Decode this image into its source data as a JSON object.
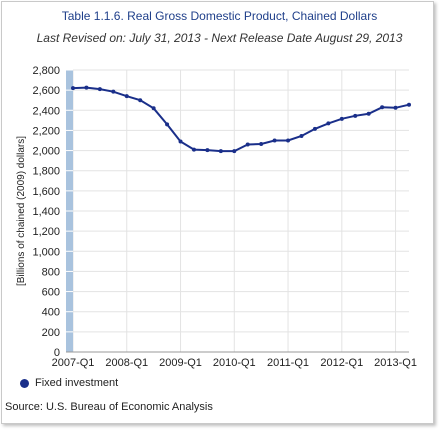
{
  "title": "Table 1.1.6. Real Gross Domestic Product, Chained Dollars",
  "subtitle": "Last Revised on: July 31, 2013 - Next Release Date August 29, 2013",
  "source": "Source: U.S. Bureau of Economic Analysis",
  "chart_data": {
    "type": "line",
    "title": "Table 1.1.6. Real Gross Domestic Product, Chained Dollars",
    "subtitle": "Last Revised on: July 31, 2013 - Next Release Date August 29, 2013",
    "ylabel": "[Billions of chained (2009) dollars]",
    "xlabel": "",
    "ylim": [
      0,
      2800
    ],
    "yticks": [
      0,
      200,
      400,
      600,
      800,
      1000,
      1200,
      1400,
      1600,
      1800,
      2000,
      2200,
      2400,
      2600,
      2800
    ],
    "ytick_labels": [
      "0",
      "200",
      "400",
      "600",
      "800",
      "1,000",
      "1,200",
      "1,400",
      "1,600",
      "1,800",
      "2,000",
      "2,200",
      "2,400",
      "2,600",
      "2,800"
    ],
    "xtick_labels": [
      "2007-Q1",
      "2008-Q1",
      "2009-Q1",
      "2010-Q1",
      "2011-Q1",
      "2012-Q1",
      "2013-Q1"
    ],
    "grid": true,
    "legend_position": "bottom-left",
    "color": "#1a2f8a",
    "series": [
      {
        "name": "Fixed investment",
        "x": [
          "2007-Q1",
          "2007-Q2",
          "2007-Q3",
          "2007-Q4",
          "2008-Q1",
          "2008-Q2",
          "2008-Q3",
          "2008-Q4",
          "2009-Q1",
          "2009-Q2",
          "2009-Q3",
          "2009-Q4",
          "2010-Q1",
          "2010-Q2",
          "2010-Q3",
          "2010-Q4",
          "2011-Q1",
          "2011-Q2",
          "2011-Q3",
          "2011-Q4",
          "2012-Q1",
          "2012-Q2",
          "2012-Q3",
          "2012-Q4",
          "2013-Q1",
          "2013-Q2"
        ],
        "values": [
          2620,
          2625,
          2610,
          2585,
          2540,
          2500,
          2420,
          2260,
          2090,
          2010,
          2005,
          1995,
          1995,
          2060,
          2065,
          2100,
          2100,
          2145,
          2215,
          2270,
          2315,
          2345,
          2365,
          2430,
          2425,
          2455
        ]
      }
    ]
  }
}
